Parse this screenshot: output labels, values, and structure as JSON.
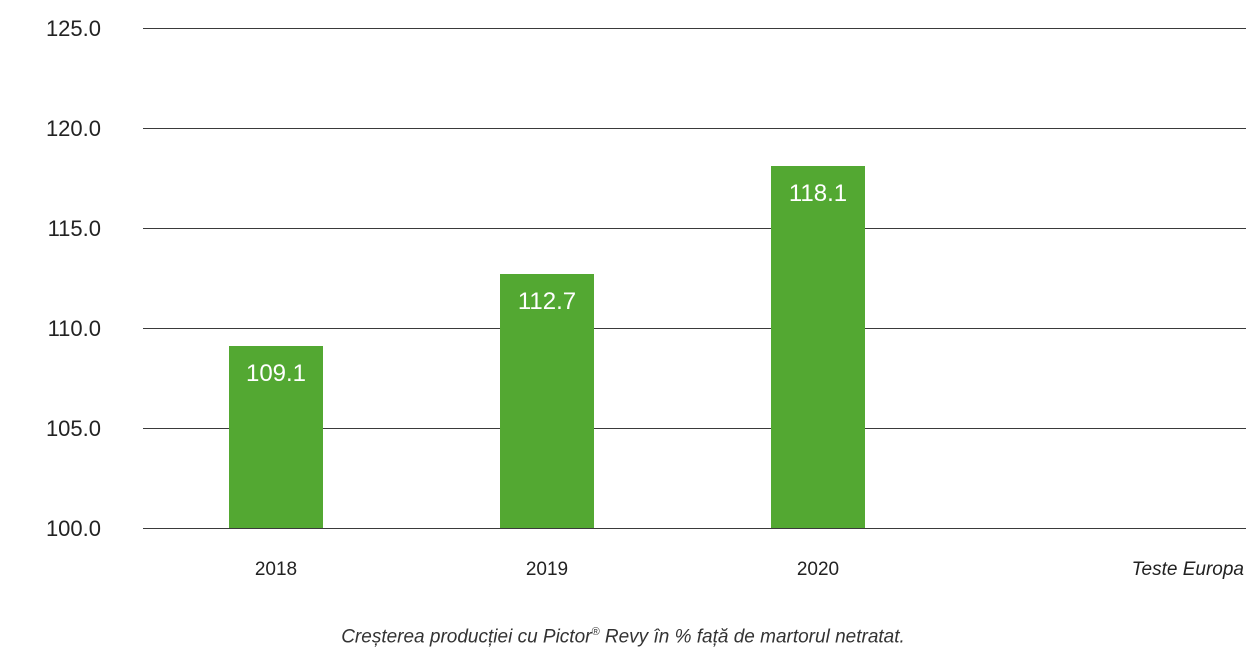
{
  "chart_data": {
    "type": "bar",
    "categories": [
      "2018",
      "2019",
      "2020"
    ],
    "values": [
      109.1,
      112.7,
      118.1
    ],
    "value_labels": [
      "109.1",
      "112.7",
      "118.1"
    ],
    "ylim": [
      100,
      125
    ],
    "y_ticks": [
      "100.0",
      "105.0",
      "110.0",
      "115.0",
      "120.0",
      "125.0"
    ],
    "y_tick_values": [
      100,
      105,
      110,
      115,
      120,
      125
    ],
    "grid": true,
    "bar_color": "#53a832",
    "gridline_color": "#3a3a3a",
    "annotation": "Teste Europa"
  },
  "caption": {
    "before": "Creșterea producției cu Pictor",
    "sup": "®",
    "after": " Revy în % față de martorul netratat."
  }
}
